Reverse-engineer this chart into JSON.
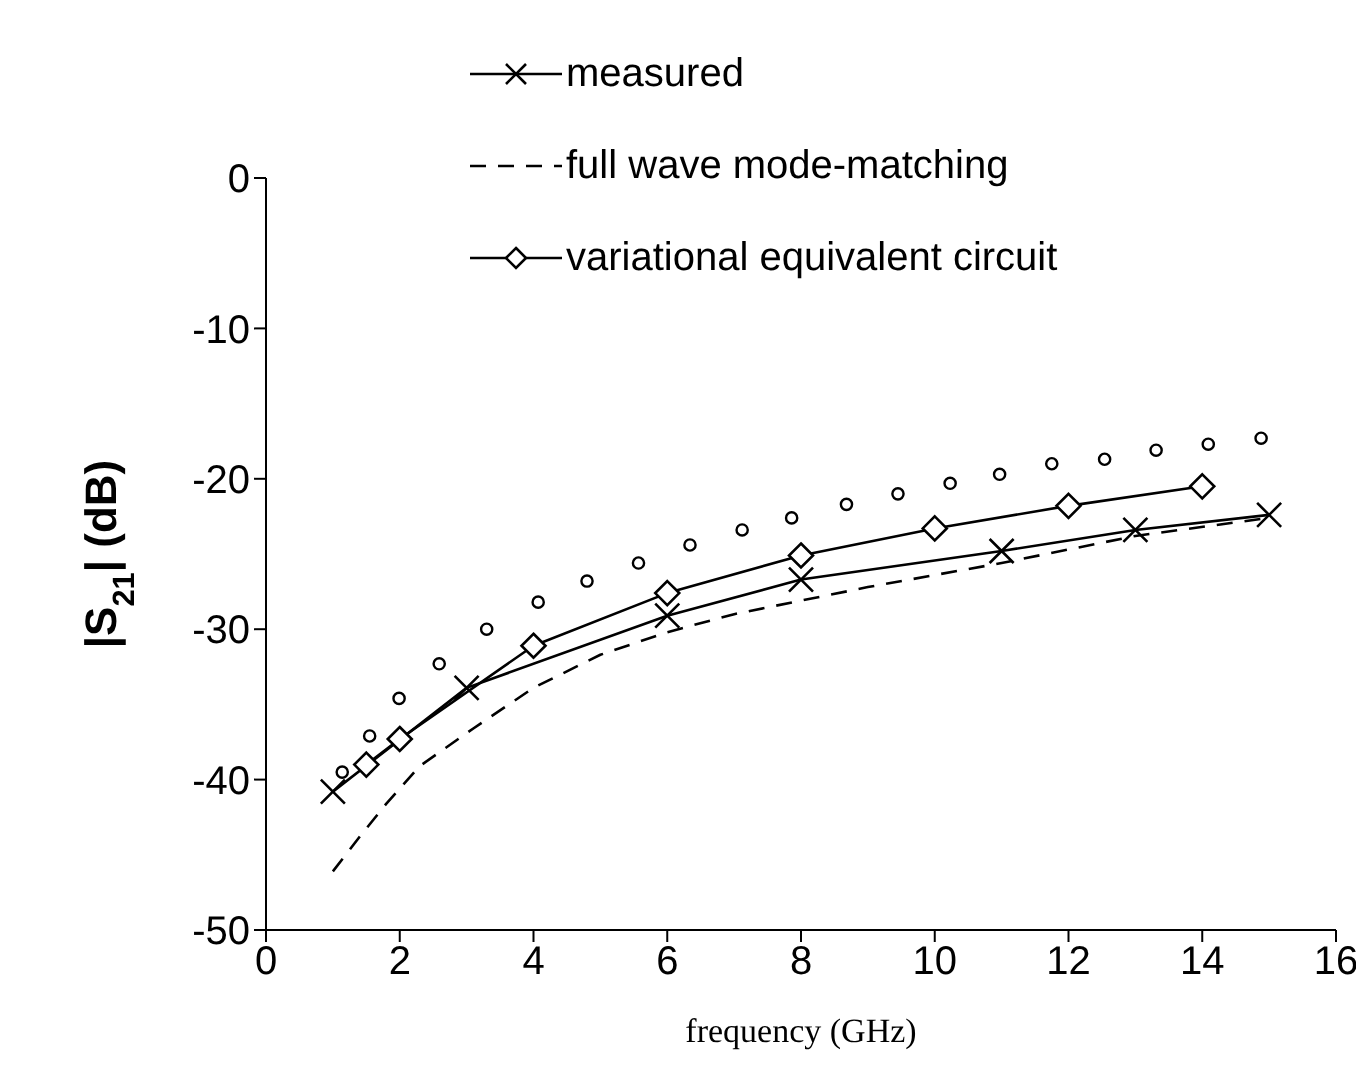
{
  "chart_data": {
    "type": "line",
    "xlabel": "frequency (GHz)",
    "ylabel": "|S$_{21}$| (dB)",
    "xlim": [
      0,
      16
    ],
    "xticks": [
      0,
      2,
      4,
      6,
      8,
      10,
      12,
      14,
      16
    ],
    "ylim": [
      -50,
      0
    ],
    "yticks": [
      0,
      -10,
      -20,
      -30,
      -40,
      -50
    ],
    "grid": false,
    "legend": "top",
    "series": [
      {
        "type": "scatter",
        "marker": "circle",
        "color": "#000000",
        "x": [
          1.14,
          1.55,
          1.99,
          2.59,
          3.3,
          4.07,
          4.8,
          5.57,
          6.34,
          7.12,
          7.86,
          8.68,
          9.45,
          10.23,
          10.97,
          11.75,
          12.54,
          13.31,
          14.09,
          14.88
        ],
        "values": [
          -39.5,
          -37.1,
          -34.6,
          -32.3,
          -30.0,
          -28.2,
          -26.8,
          -25.6,
          -24.4,
          -23.4,
          -22.6,
          -21.7,
          -21.0,
          -20.3,
          -19.7,
          -19.0,
          -18.7,
          -18.1,
          -17.7,
          -17.3
        ]
      },
      {
        "name": "measured",
        "marker": "cross",
        "line_style": "solid",
        "color": "#000000",
        "x": [
          1,
          3,
          6,
          8,
          11,
          13,
          15
        ],
        "values": [
          -40.8,
          -33.9,
          -29.1,
          -26.7,
          -24.8,
          -23.4,
          -22.4
        ]
      },
      {
        "name": "full wave mode-matching",
        "marker": "none",
        "line_style": "dashed",
        "color": "#000000",
        "x": [
          1,
          1.4,
          1.8,
          2.3,
          3.1,
          4,
          5,
          6,
          7,
          8,
          9,
          11,
          13,
          15
        ],
        "values": [
          -46.1,
          -43.8,
          -41.6,
          -39.1,
          -36.6,
          -33.9,
          -31.7,
          -30.2,
          -29.0,
          -28.1,
          -27.2,
          -25.6,
          -23.8,
          -22.6
        ]
      },
      {
        "name": "variational equivalent circuit",
        "marker": "diamond",
        "line_style": "solid",
        "color": "#000000",
        "x": [
          1.5,
          2,
          4,
          6,
          8,
          10,
          12,
          14
        ],
        "values": [
          -39.0,
          -37.3,
          -31.1,
          -27.6,
          -25.1,
          -23.3,
          -21.8,
          -20.5
        ]
      }
    ]
  }
}
